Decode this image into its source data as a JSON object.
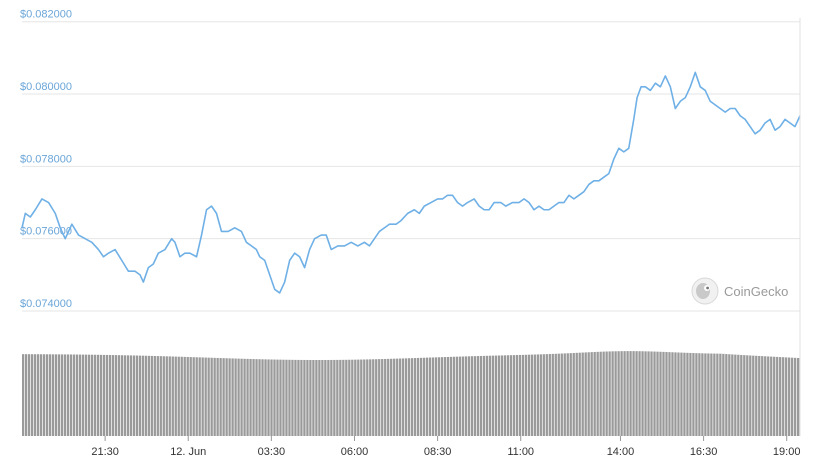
{
  "chart_data": {
    "type": "line",
    "y_tick_labels": [
      "$0.074000",
      "$0.076000",
      "$0.078000",
      "$0.080000",
      "$0.082000"
    ],
    "y_ticks": [
      0.074,
      0.076,
      0.078,
      0.08,
      0.082
    ],
    "ylim": [
      0.0735,
      0.0822
    ],
    "x_tick_labels": [
      "21:30",
      "12. Jun",
      "03:30",
      "06:00",
      "08:30",
      "11:00",
      "14:00",
      "16:30",
      "19:00"
    ],
    "x_tick_positions": [
      2.5,
      5,
      7.5,
      10,
      12.5,
      15,
      18,
      20.5,
      23
    ],
    "xlim": [
      0,
      23.4
    ],
    "grid": true,
    "watermark": "CoinGecko",
    "colors": {
      "line": "#6fb0e6",
      "volume": "#9a9a9a",
      "ytick": "#6aa5d8"
    },
    "series": [
      {
        "values": [
          [
            0.0,
            0.0763
          ],
          [
            0.1,
            0.0767
          ],
          [
            0.25,
            0.0766
          ],
          [
            0.4,
            0.0768
          ],
          [
            0.6,
            0.0771
          ],
          [
            0.8,
            0.077
          ],
          [
            1.0,
            0.0767
          ],
          [
            1.15,
            0.0763
          ],
          [
            1.3,
            0.076
          ],
          [
            1.5,
            0.0764
          ],
          [
            1.7,
            0.0761
          ],
          [
            1.9,
            0.076
          ],
          [
            2.1,
            0.0759
          ],
          [
            2.3,
            0.0757
          ],
          [
            2.45,
            0.0755
          ],
          [
            2.6,
            0.0756
          ],
          [
            2.8,
            0.0757
          ],
          [
            3.0,
            0.0754
          ],
          [
            3.2,
            0.0751
          ],
          [
            3.4,
            0.0751
          ],
          [
            3.55,
            0.075
          ],
          [
            3.65,
            0.0748
          ],
          [
            3.8,
            0.0752
          ],
          [
            3.95,
            0.0753
          ],
          [
            4.1,
            0.0756
          ],
          [
            4.3,
            0.0757
          ],
          [
            4.5,
            0.076
          ],
          [
            4.6,
            0.0759
          ],
          [
            4.75,
            0.0755
          ],
          [
            4.9,
            0.0756
          ],
          [
            5.05,
            0.0756
          ],
          [
            5.25,
            0.0755
          ],
          [
            5.4,
            0.0761
          ],
          [
            5.55,
            0.0768
          ],
          [
            5.7,
            0.0769
          ],
          [
            5.85,
            0.0767
          ],
          [
            6.0,
            0.0762
          ],
          [
            6.2,
            0.0762
          ],
          [
            6.4,
            0.0763
          ],
          [
            6.6,
            0.0762
          ],
          [
            6.75,
            0.0759
          ],
          [
            6.9,
            0.0758
          ],
          [
            7.05,
            0.0757
          ],
          [
            7.15,
            0.0755
          ],
          [
            7.3,
            0.0754
          ],
          [
            7.45,
            0.075
          ],
          [
            7.6,
            0.0746
          ],
          [
            7.75,
            0.0745
          ],
          [
            7.9,
            0.0748
          ],
          [
            8.05,
            0.0754
          ],
          [
            8.2,
            0.0756
          ],
          [
            8.35,
            0.0755
          ],
          [
            8.5,
            0.0752
          ],
          [
            8.65,
            0.0757
          ],
          [
            8.8,
            0.076
          ],
          [
            9.0,
            0.0761
          ],
          [
            9.15,
            0.0761
          ],
          [
            9.3,
            0.0757
          ],
          [
            9.5,
            0.0758
          ],
          [
            9.7,
            0.0758
          ],
          [
            9.9,
            0.0759
          ],
          [
            10.1,
            0.0758
          ],
          [
            10.3,
            0.0759
          ],
          [
            10.45,
            0.0758
          ],
          [
            10.6,
            0.076
          ],
          [
            10.75,
            0.0762
          ],
          [
            10.9,
            0.0763
          ],
          [
            11.05,
            0.0764
          ],
          [
            11.25,
            0.0764
          ],
          [
            11.4,
            0.0765
          ],
          [
            11.6,
            0.0767
          ],
          [
            11.8,
            0.0768
          ],
          [
            11.95,
            0.0767
          ],
          [
            12.1,
            0.0769
          ],
          [
            12.3,
            0.077
          ],
          [
            12.5,
            0.0771
          ],
          [
            12.65,
            0.0771
          ],
          [
            12.8,
            0.0772
          ],
          [
            12.95,
            0.0772
          ],
          [
            13.1,
            0.077
          ],
          [
            13.25,
            0.0769
          ],
          [
            13.4,
            0.077
          ],
          [
            13.6,
            0.0771
          ],
          [
            13.75,
            0.0769
          ],
          [
            13.9,
            0.0768
          ],
          [
            14.05,
            0.0768
          ],
          [
            14.2,
            0.077
          ],
          [
            14.4,
            0.077
          ],
          [
            14.55,
            0.0769
          ],
          [
            14.75,
            0.077
          ],
          [
            14.95,
            0.077
          ],
          [
            15.1,
            0.0771
          ],
          [
            15.25,
            0.077
          ],
          [
            15.4,
            0.0768
          ],
          [
            15.55,
            0.0769
          ],
          [
            15.7,
            0.0768
          ],
          [
            15.85,
            0.0768
          ],
          [
            16.0,
            0.0769
          ],
          [
            16.15,
            0.077
          ],
          [
            16.3,
            0.077
          ],
          [
            16.45,
            0.0772
          ],
          [
            16.6,
            0.0771
          ],
          [
            16.75,
            0.0772
          ],
          [
            16.9,
            0.0773
          ],
          [
            17.05,
            0.0775
          ],
          [
            17.2,
            0.0776
          ],
          [
            17.35,
            0.0776
          ],
          [
            17.5,
            0.0777
          ],
          [
            17.65,
            0.0778
          ],
          [
            17.8,
            0.0782
          ],
          [
            17.95,
            0.0785
          ],
          [
            18.1,
            0.0784
          ],
          [
            18.25,
            0.0785
          ],
          [
            18.4,
            0.0793
          ],
          [
            18.5,
            0.0799
          ],
          [
            18.62,
            0.0802
          ],
          [
            18.75,
            0.0802
          ],
          [
            18.9,
            0.0801
          ],
          [
            19.05,
            0.0803
          ],
          [
            19.2,
            0.0802
          ],
          [
            19.35,
            0.0805
          ],
          [
            19.5,
            0.0802
          ],
          [
            19.65,
            0.0796
          ],
          [
            19.8,
            0.0798
          ],
          [
            19.95,
            0.0799
          ],
          [
            20.1,
            0.0802
          ],
          [
            20.25,
            0.0806
          ],
          [
            20.4,
            0.0802
          ],
          [
            20.55,
            0.0801
          ],
          [
            20.7,
            0.0798
          ],
          [
            20.85,
            0.0797
          ],
          [
            21.0,
            0.0796
          ],
          [
            21.15,
            0.0795
          ],
          [
            21.3,
            0.0796
          ],
          [
            21.45,
            0.0796
          ],
          [
            21.6,
            0.0794
          ],
          [
            21.75,
            0.0793
          ],
          [
            21.9,
            0.0791
          ],
          [
            22.05,
            0.0789
          ],
          [
            22.2,
            0.079
          ],
          [
            22.35,
            0.0792
          ],
          [
            22.5,
            0.0793
          ],
          [
            22.65,
            0.079
          ],
          [
            22.8,
            0.0791
          ],
          [
            22.95,
            0.0793
          ],
          [
            23.1,
            0.0792
          ],
          [
            23.25,
            0.0791
          ],
          [
            23.4,
            0.0794
          ]
        ]
      }
    ]
  }
}
